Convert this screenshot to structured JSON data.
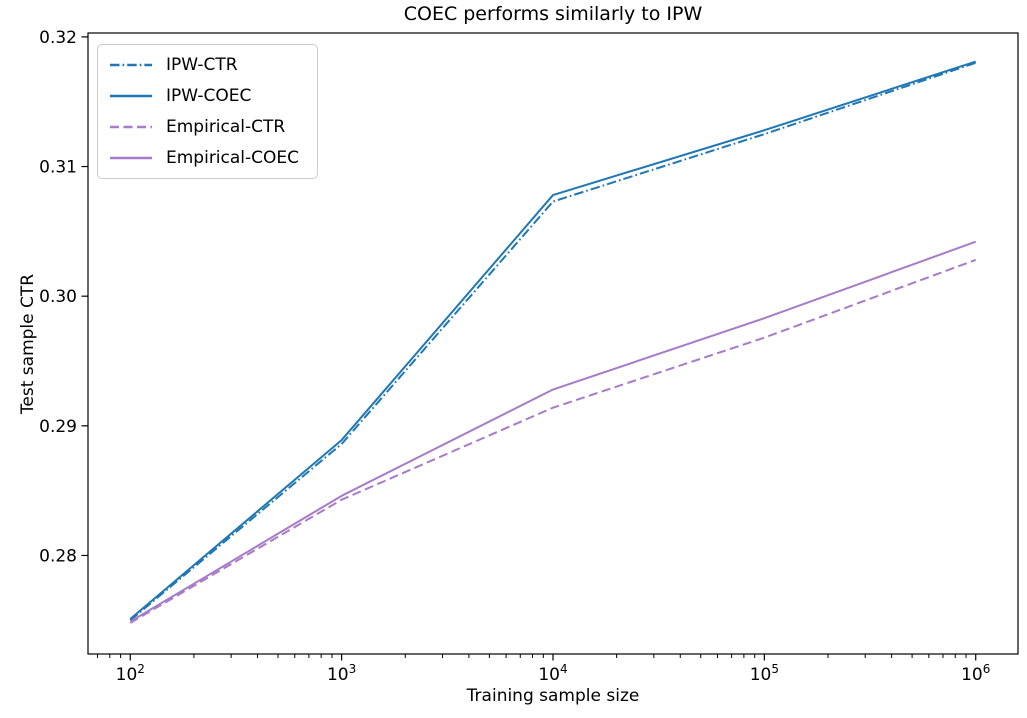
{
  "chart_data": {
    "type": "line",
    "title": "COEC performs similarly to IPW",
    "xlabel": "Training sample size",
    "ylabel": "Test sample CTR",
    "xscale": "log",
    "grid": false,
    "legend_position": "upper left",
    "background_color": "#ffffff",
    "axis_color": "#000000",
    "xlim": [
      63.1,
      1584893
    ],
    "ylim": [
      0.2724,
      0.3203
    ],
    "x": [
      100,
      1000,
      10000,
      100000,
      1000000
    ],
    "xticks": [
      {
        "value": 100,
        "base": "10",
        "exponent": "2"
      },
      {
        "value": 1000,
        "base": "10",
        "exponent": "3"
      },
      {
        "value": 10000,
        "base": "10",
        "exponent": "4"
      },
      {
        "value": 100000,
        "base": "10",
        "exponent": "5"
      },
      {
        "value": 1000000,
        "base": "10",
        "exponent": "6"
      }
    ],
    "yticks": [
      {
        "value": 0.28,
        "label": "0.28"
      },
      {
        "value": 0.29,
        "label": "0.29"
      },
      {
        "value": 0.3,
        "label": "0.30"
      },
      {
        "value": 0.31,
        "label": "0.31"
      },
      {
        "value": 0.32,
        "label": "0.32"
      }
    ],
    "series": [
      {
        "name": "IPW-CTR",
        "color": "#1f77b4",
        "linestyle": "dashdot",
        "values": [
          0.275,
          0.2886,
          0.3073,
          0.3125,
          0.318
        ]
      },
      {
        "name": "IPW-COEC",
        "color": "#1f77b4",
        "linestyle": "solid",
        "values": [
          0.2751,
          0.2889,
          0.3078,
          0.3128,
          0.3181
        ]
      },
      {
        "name": "Empirical-CTR",
        "color": "#a87bc9",
        "linestyle": "dashed",
        "values": [
          0.2748,
          0.2843,
          0.2914,
          0.2968,
          0.3028
        ]
      },
      {
        "name": "Empirical-COEC",
        "color": "#a87bc9",
        "linestyle": "solid",
        "values": [
          0.2749,
          0.2846,
          0.2928,
          0.2983,
          0.3042
        ]
      }
    ]
  }
}
